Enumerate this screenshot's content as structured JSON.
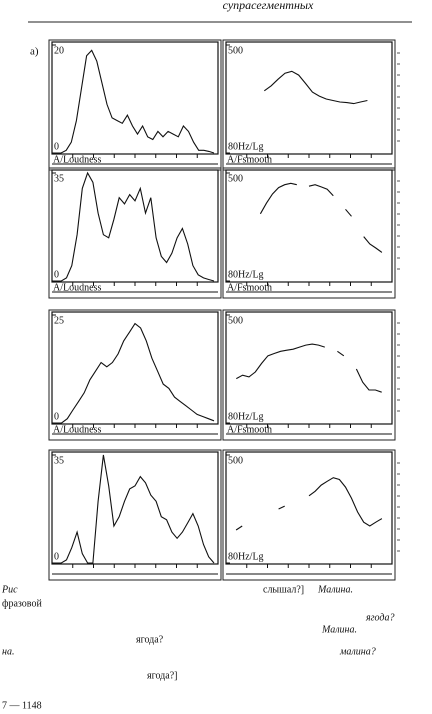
{
  "header": {
    "title": "супрасегментных"
  },
  "panel_label": "а)",
  "chart_data": [
    {
      "type": "line",
      "xlabel": "A/Loudness",
      "color": "#111",
      "ylim": [
        0,
        20
      ],
      "yticks": [
        0,
        20
      ],
      "values": [
        0,
        0,
        0.5,
        2,
        6,
        12,
        18,
        19,
        17,
        13,
        9,
        6.5,
        6,
        5.5,
        7,
        5,
        3.5,
        5,
        3,
        2.5,
        4,
        3,
        4,
        3.5,
        3,
        5,
        4,
        2,
        0.5,
        0.5,
        0.3,
        0
      ]
    },
    {
      "type": "line",
      "xlabel": "A/Fsmooth",
      "color": "#111",
      "log": true,
      "ylim": [
        80,
        500
      ],
      "yticks": [
        {
          "value": 80,
          "label": "80Hz/Lg"
        },
        500
      ],
      "values": [
        null,
        null,
        null,
        null,
        null,
        230,
        250,
        280,
        310,
        320,
        300,
        260,
        225,
        210,
        200,
        195,
        190,
        188,
        185,
        190,
        195,
        null,
        null,
        null
      ]
    },
    {
      "type": "line",
      "xlabel": "A/Loudness",
      "color": "#111",
      "ylim": [
        0,
        35
      ],
      "yticks": [
        0,
        35
      ],
      "values": [
        0,
        0,
        1,
        5,
        15,
        30,
        35,
        32,
        22,
        15,
        14,
        20,
        27,
        25,
        28,
        26,
        30,
        22,
        27,
        14,
        8,
        6,
        9,
        14,
        17,
        12,
        5,
        2,
        1,
        0.5,
        0
      ]
    },
    {
      "type": "line",
      "xlabel": "A/Fsmooth",
      "color": "#111",
      "log": true,
      "ylim": [
        80,
        500
      ],
      "yticks": [
        {
          "value": 80,
          "label": "80Hz/Lg"
        },
        500
      ],
      "values": [
        null,
        null,
        null,
        null,
        null,
        250,
        300,
        350,
        390,
        410,
        420,
        410,
        null,
        400,
        410,
        395,
        380,
        340,
        null,
        270,
        240,
        null,
        170,
        150,
        140,
        130,
        null
      ]
    },
    {
      "type": "line",
      "xlabel": "A/Loudness",
      "color": "#111",
      "ylim": [
        0,
        25
      ],
      "yticks": [
        0,
        25
      ],
      "values": [
        0,
        0,
        1,
        3,
        5,
        7,
        10,
        12,
        14,
        13,
        14,
        16,
        19,
        21,
        23,
        22,
        19,
        15,
        12,
        9,
        8,
        6,
        5,
        4,
        3,
        2,
        1.5,
        1,
        0.5
      ]
    },
    {
      "type": "line",
      "xlabel": "A/Fsmooth",
      "color": "#111",
      "log": true,
      "ylim": [
        80,
        500
      ],
      "yticks": [
        {
          "value": 80,
          "label": "80Hz/Lg"
        },
        500
      ],
      "values": [
        null,
        170,
        180,
        175,
        190,
        220,
        250,
        260,
        270,
        275,
        280,
        290,
        300,
        305,
        300,
        290,
        null,
        270,
        250,
        null,
        200,
        160,
        140,
        140,
        135,
        null
      ]
    },
    {
      "type": "line",
      "color": "#111",
      "ylim": [
        0,
        35
      ],
      "yticks": [
        0,
        35
      ],
      "values": [
        0,
        0,
        1,
        5,
        10,
        3,
        0,
        0,
        20,
        35,
        25,
        12,
        15,
        20,
        24,
        25,
        28,
        26,
        22,
        20,
        15,
        14,
        10,
        8,
        10,
        13,
        16,
        12,
        6,
        2,
        0
      ]
    },
    {
      "type": "line",
      "color": "#111",
      "log": true,
      "ylim": [
        80,
        500
      ],
      "yticks": [
        {
          "value": 80,
          "label": "80Hz/Lg"
        },
        500
      ],
      "values": [
        null,
        140,
        150,
        null,
        165,
        null,
        180,
        null,
        200,
        210,
        null,
        225,
        null,
        250,
        270,
        300,
        320,
        340,
        330,
        290,
        240,
        190,
        160,
        150,
        160,
        170,
        null
      ]
    }
  ],
  "caption": {
    "fragments": [
      "Рис",
      "фразовой",
      "слышал?]",
      "Малина.",
      "ягода?",
      "Малина.",
      "ягода?",
      "на.",
      "малина?",
      "ягода?]",
      "7 — 1148"
    ]
  }
}
